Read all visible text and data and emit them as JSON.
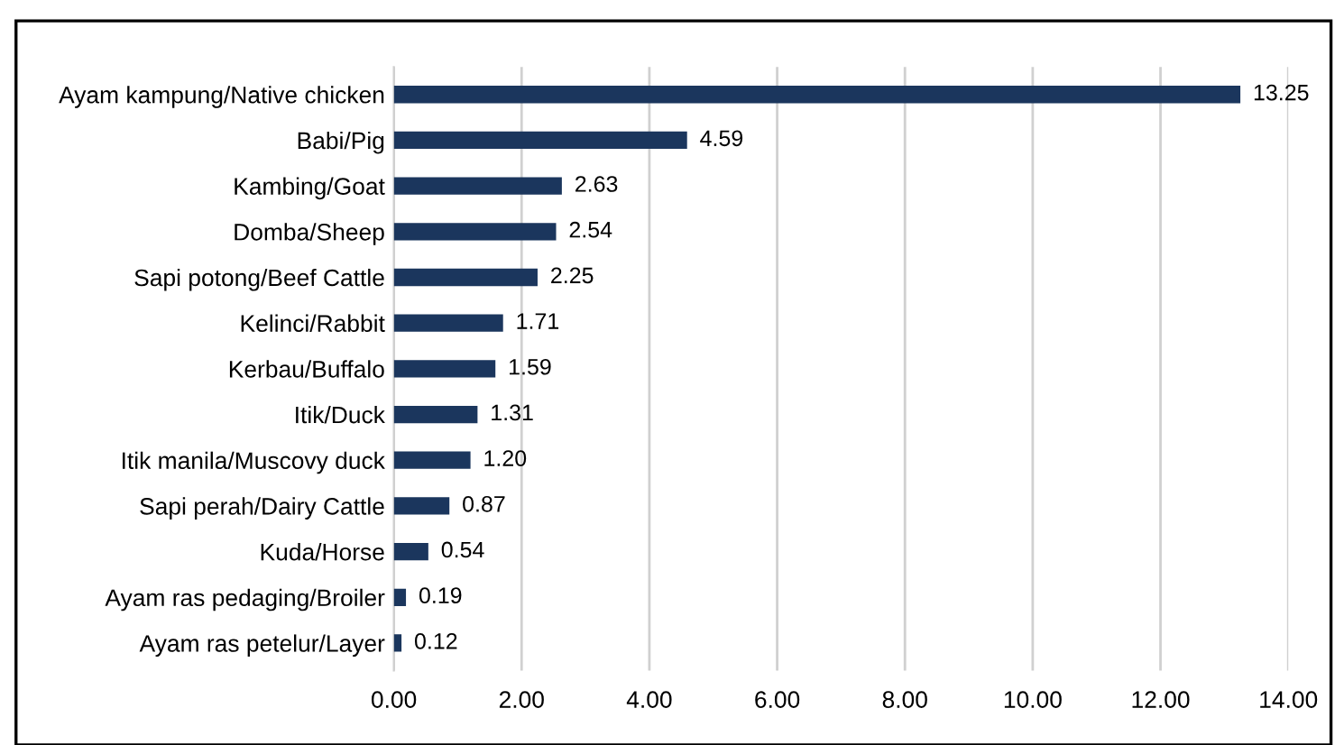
{
  "chart_data": {
    "type": "bar",
    "orientation": "horizontal",
    "categories": [
      "Ayam kampung/Native chicken",
      "Babi/Pig",
      "Kambing/Goat",
      "Domba/Sheep",
      "Sapi potong/Beef Cattle",
      "Kelinci/Rabbit",
      "Kerbau/Buffalo",
      "Itik/Duck",
      "Itik manila/Muscovy duck",
      "Sapi perah/Dairy Cattle",
      "Kuda/Horse",
      "Ayam ras pedaging/Broiler",
      "Ayam ras petelur/Layer"
    ],
    "values": [
      13.25,
      4.59,
      2.63,
      2.54,
      2.25,
      1.71,
      1.59,
      1.31,
      1.2,
      0.87,
      0.54,
      0.19,
      0.12
    ],
    "value_labels": [
      "13.25",
      "4.59",
      "2.63",
      "2.54",
      "2.25",
      "1.71",
      "1.59",
      "1.31",
      "1.20",
      "0.87",
      "0.54",
      "0.19",
      "0.12"
    ],
    "color": "#1b365d",
    "xlim": [
      0,
      14
    ],
    "xticks": [
      {
        "value": 0,
        "label": "0.00"
      },
      {
        "value": 2,
        "label": "2.00"
      },
      {
        "value": 4,
        "label": "4.00"
      },
      {
        "value": 6,
        "label": "6.00"
      },
      {
        "value": 8,
        "label": "8.00"
      },
      {
        "value": 10,
        "label": "10.00"
      },
      {
        "value": 12,
        "label": "12.00"
      },
      {
        "value": 14,
        "label": "14.00"
      }
    ],
    "grid": "x"
  }
}
